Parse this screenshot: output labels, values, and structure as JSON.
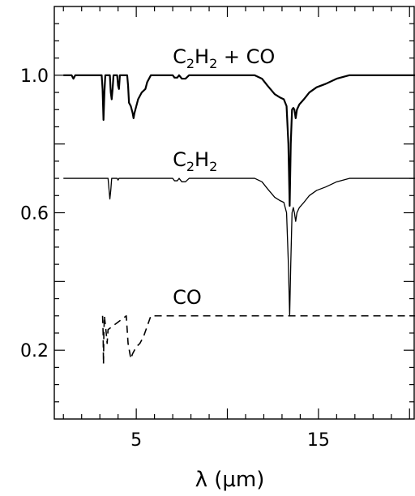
{
  "chart_data": {
    "type": "line",
    "title": "",
    "xlabel": "λ (μm)",
    "ylabel": "",
    "xlim": [
      0.5,
      20.3
    ],
    "ylim": [
      0.0,
      1.2
    ],
    "x_ticks": [
      5,
      15
    ],
    "x_tick_labels": [
      "5",
      "15"
    ],
    "y_ticks": [
      0.2,
      0.6,
      1.0
    ],
    "y_tick_labels": [
      "0.2",
      "0.6",
      "1.0"
    ],
    "grid": false,
    "legend": "none",
    "annotations": [
      {
        "id": "c2h2-co",
        "main": "C",
        "sub1": "2",
        "mid": "H",
        "sub2": "2",
        "tail": " + CO",
        "x": 7.0,
        "y": 1.035
      },
      {
        "id": "c2h2",
        "main": "C",
        "sub1": "2",
        "mid": "H",
        "sub2": "2",
        "tail": "",
        "x": 7.0,
        "y": 0.735
      },
      {
        "id": "co",
        "main": "CO",
        "sub1": "",
        "mid": "",
        "sub2": "",
        "tail": "",
        "x": 7.0,
        "y": 0.335
      }
    ],
    "series": [
      {
        "id": "c2h2-co",
        "style": "solid",
        "stroke_width": 2.2,
        "points": [
          [
            1.0,
            1.0
          ],
          [
            1.45,
            1.0
          ],
          [
            1.55,
            0.99
          ],
          [
            1.65,
            1.0
          ],
          [
            3.1,
            1.0
          ],
          [
            3.15,
            0.96
          ],
          [
            3.2,
            0.87
          ],
          [
            3.25,
            0.95
          ],
          [
            3.3,
            1.0
          ],
          [
            3.55,
            1.0
          ],
          [
            3.6,
            0.95
          ],
          [
            3.65,
            0.93
          ],
          [
            3.7,
            0.96
          ],
          [
            3.75,
            1.0
          ],
          [
            3.95,
            1.0
          ],
          [
            4.0,
            0.97
          ],
          [
            4.05,
            0.96
          ],
          [
            4.1,
            1.0
          ],
          [
            4.5,
            1.0
          ],
          [
            4.55,
            0.97
          ],
          [
            4.6,
            0.92
          ],
          [
            4.7,
            0.91
          ],
          [
            4.8,
            0.89
          ],
          [
            4.85,
            0.875
          ],
          [
            4.9,
            0.89
          ],
          [
            5.0,
            0.91
          ],
          [
            5.1,
            0.93
          ],
          [
            5.3,
            0.95
          ],
          [
            5.5,
            0.96
          ],
          [
            5.6,
            0.98
          ],
          [
            5.8,
            1.0
          ],
          [
            7.0,
            1.0
          ],
          [
            7.1,
            0.993
          ],
          [
            7.25,
            0.993
          ],
          [
            7.35,
            1.0
          ],
          [
            7.5,
            0.99
          ],
          [
            7.7,
            0.99
          ],
          [
            7.9,
            1.0
          ],
          [
            10.0,
            1.0
          ],
          [
            11.5,
            1.0
          ],
          [
            11.9,
            0.99
          ],
          [
            12.2,
            0.97
          ],
          [
            12.6,
            0.945
          ],
          [
            12.9,
            0.935
          ],
          [
            13.1,
            0.93
          ],
          [
            13.25,
            0.91
          ],
          [
            13.35,
            0.8
          ],
          [
            13.42,
            0.62
          ],
          [
            13.48,
            0.8
          ],
          [
            13.55,
            0.9
          ],
          [
            13.62,
            0.905
          ],
          [
            13.68,
            0.9
          ],
          [
            13.75,
            0.875
          ],
          [
            13.82,
            0.9
          ],
          [
            13.95,
            0.915
          ],
          [
            14.2,
            0.93
          ],
          [
            14.5,
            0.95
          ],
          [
            14.9,
            0.965
          ],
          [
            15.4,
            0.975
          ],
          [
            16.0,
            0.99
          ],
          [
            16.7,
            1.0
          ],
          [
            18.5,
            1.0
          ],
          [
            20.3,
            1.0
          ]
        ]
      },
      {
        "id": "c2h2",
        "style": "solid",
        "stroke_width": 1.3,
        "points": [
          [
            1.0,
            0.7
          ],
          [
            3.45,
            0.7
          ],
          [
            3.5,
            0.67
          ],
          [
            3.55,
            0.64
          ],
          [
            3.6,
            0.665
          ],
          [
            3.65,
            0.7
          ],
          [
            3.95,
            0.7
          ],
          [
            4.0,
            0.695
          ],
          [
            4.05,
            0.7
          ],
          [
            7.0,
            0.7
          ],
          [
            7.1,
            0.693
          ],
          [
            7.25,
            0.693
          ],
          [
            7.35,
            0.7
          ],
          [
            7.5,
            0.69
          ],
          [
            7.7,
            0.69
          ],
          [
            7.9,
            0.7
          ],
          [
            11.5,
            0.7
          ],
          [
            11.9,
            0.69
          ],
          [
            12.2,
            0.67
          ],
          [
            12.6,
            0.645
          ],
          [
            12.9,
            0.635
          ],
          [
            13.1,
            0.63
          ],
          [
            13.25,
            0.6
          ],
          [
            13.35,
            0.45
          ],
          [
            13.42,
            0.3
          ],
          [
            13.48,
            0.45
          ],
          [
            13.55,
            0.6
          ],
          [
            13.62,
            0.615
          ],
          [
            13.68,
            0.6
          ],
          [
            13.75,
            0.575
          ],
          [
            13.82,
            0.6
          ],
          [
            13.95,
            0.615
          ],
          [
            14.2,
            0.63
          ],
          [
            14.5,
            0.65
          ],
          [
            14.9,
            0.665
          ],
          [
            15.4,
            0.675
          ],
          [
            16.0,
            0.69
          ],
          [
            16.7,
            0.7
          ],
          [
            20.3,
            0.7
          ]
        ]
      },
      {
        "id": "co",
        "style": "dashed",
        "stroke_width": 1.6,
        "points": [
          [
            3.15,
            0.3
          ],
          [
            3.18,
            0.25
          ],
          [
            3.2,
            0.16
          ],
          [
            3.22,
            0.25
          ],
          [
            3.25,
            0.3
          ],
          [
            3.35,
            0.25
          ],
          [
            3.4,
            0.22
          ],
          [
            3.45,
            0.26
          ],
          [
            4.45,
            0.3
          ],
          [
            4.5,
            0.26
          ],
          [
            4.55,
            0.22
          ],
          [
            4.65,
            0.19
          ],
          [
            4.7,
            0.175
          ],
          [
            4.8,
            0.19
          ],
          [
            4.9,
            0.2
          ],
          [
            5.0,
            0.21
          ],
          [
            5.2,
            0.22
          ],
          [
            5.4,
            0.24
          ],
          [
            5.6,
            0.27
          ],
          [
            5.8,
            0.3
          ],
          [
            20.3,
            0.3
          ]
        ]
      }
    ]
  }
}
